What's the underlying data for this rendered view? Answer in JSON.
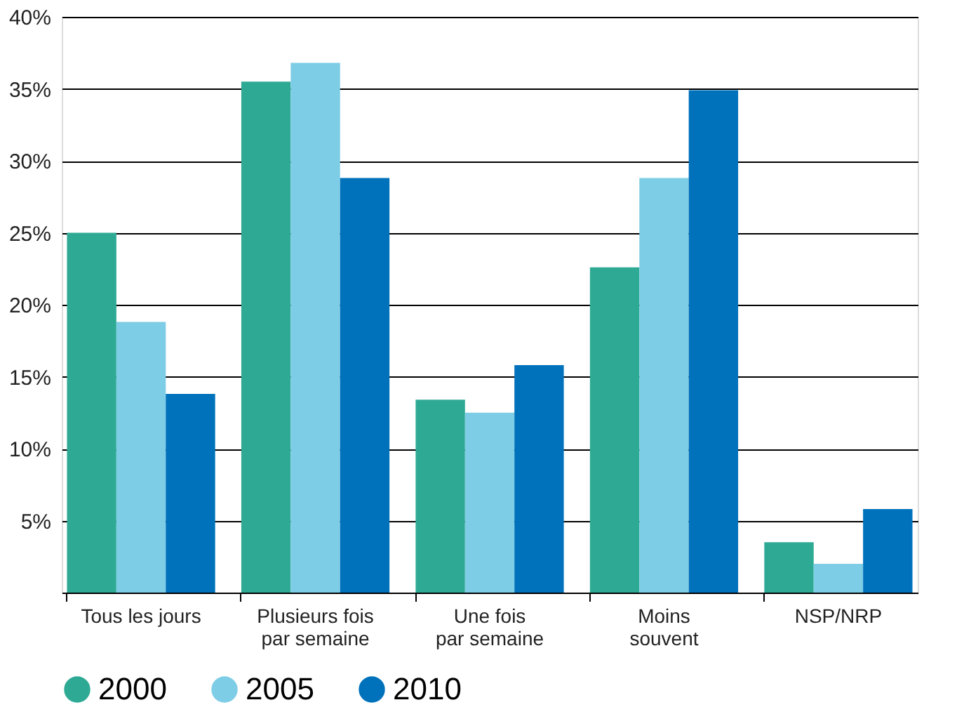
{
  "chart_data": {
    "type": "bar",
    "categories": [
      "Tous les jours",
      "Plusieurs fois\npar semaine",
      "Une fois\npar semaine",
      "Moins\nsouvent",
      "NSP/NRP"
    ],
    "series": [
      {
        "name": "2000",
        "color": "#2eaa94",
        "values": [
          25,
          35.5,
          13.4,
          22.6,
          3.5
        ]
      },
      {
        "name": "2005",
        "color": "#7ecde6",
        "values": [
          18.8,
          36.8,
          12.5,
          28.8,
          2.0
        ]
      },
      {
        "name": "2010",
        "color": "#0072bb",
        "values": [
          13.8,
          28.8,
          15.8,
          34.9,
          5.8
        ]
      }
    ],
    "ylim": [
      0,
      40
    ],
    "yticks": [
      {
        "value": 5,
        "label": "5%"
      },
      {
        "value": 10,
        "label": "10%"
      },
      {
        "value": 15,
        "label": "15%"
      },
      {
        "value": 20,
        "label": "20%"
      },
      {
        "value": 25,
        "label": "25%"
      },
      {
        "value": 30,
        "label": "30%"
      },
      {
        "value": 35,
        "label": "35%"
      },
      {
        "value": 40,
        "label": "40%"
      }
    ],
    "grid": "y",
    "legend": "bottom"
  }
}
